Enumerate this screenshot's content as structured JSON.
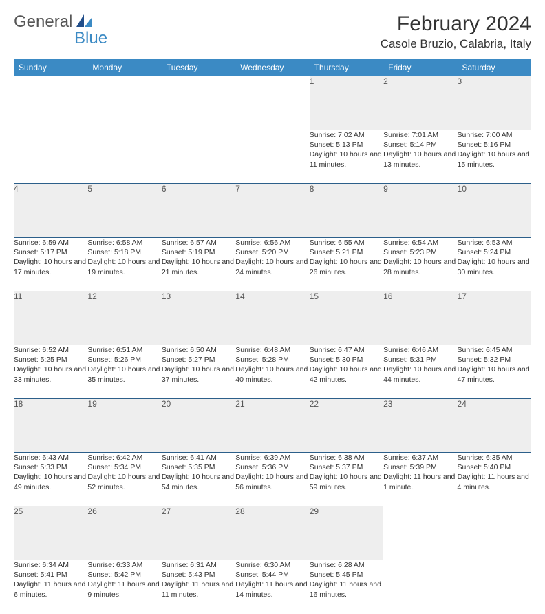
{
  "logo": {
    "part1": "General",
    "part2": "Blue"
  },
  "title": "February 2024",
  "location": "Casole Bruzio, Calabria, Italy",
  "colors": {
    "header_bg": "#3b8ac4",
    "header_text": "#ffffff",
    "daynum_bg": "#eeeeee",
    "border": "#2c5f8a"
  },
  "weekdays": [
    "Sunday",
    "Monday",
    "Tuesday",
    "Wednesday",
    "Thursday",
    "Friday",
    "Saturday"
  ],
  "weeks": [
    [
      null,
      null,
      null,
      null,
      {
        "n": "1",
        "sr": "Sunrise: 7:02 AM",
        "ss": "Sunset: 5:13 PM",
        "dl": "Daylight: 10 hours and 11 minutes."
      },
      {
        "n": "2",
        "sr": "Sunrise: 7:01 AM",
        "ss": "Sunset: 5:14 PM",
        "dl": "Daylight: 10 hours and 13 minutes."
      },
      {
        "n": "3",
        "sr": "Sunrise: 7:00 AM",
        "ss": "Sunset: 5:16 PM",
        "dl": "Daylight: 10 hours and 15 minutes."
      }
    ],
    [
      {
        "n": "4",
        "sr": "Sunrise: 6:59 AM",
        "ss": "Sunset: 5:17 PM",
        "dl": "Daylight: 10 hours and 17 minutes."
      },
      {
        "n": "5",
        "sr": "Sunrise: 6:58 AM",
        "ss": "Sunset: 5:18 PM",
        "dl": "Daylight: 10 hours and 19 minutes."
      },
      {
        "n": "6",
        "sr": "Sunrise: 6:57 AM",
        "ss": "Sunset: 5:19 PM",
        "dl": "Daylight: 10 hours and 21 minutes."
      },
      {
        "n": "7",
        "sr": "Sunrise: 6:56 AM",
        "ss": "Sunset: 5:20 PM",
        "dl": "Daylight: 10 hours and 24 minutes."
      },
      {
        "n": "8",
        "sr": "Sunrise: 6:55 AM",
        "ss": "Sunset: 5:21 PM",
        "dl": "Daylight: 10 hours and 26 minutes."
      },
      {
        "n": "9",
        "sr": "Sunrise: 6:54 AM",
        "ss": "Sunset: 5:23 PM",
        "dl": "Daylight: 10 hours and 28 minutes."
      },
      {
        "n": "10",
        "sr": "Sunrise: 6:53 AM",
        "ss": "Sunset: 5:24 PM",
        "dl": "Daylight: 10 hours and 30 minutes."
      }
    ],
    [
      {
        "n": "11",
        "sr": "Sunrise: 6:52 AM",
        "ss": "Sunset: 5:25 PM",
        "dl": "Daylight: 10 hours and 33 minutes."
      },
      {
        "n": "12",
        "sr": "Sunrise: 6:51 AM",
        "ss": "Sunset: 5:26 PM",
        "dl": "Daylight: 10 hours and 35 minutes."
      },
      {
        "n": "13",
        "sr": "Sunrise: 6:50 AM",
        "ss": "Sunset: 5:27 PM",
        "dl": "Daylight: 10 hours and 37 minutes."
      },
      {
        "n": "14",
        "sr": "Sunrise: 6:48 AM",
        "ss": "Sunset: 5:28 PM",
        "dl": "Daylight: 10 hours and 40 minutes."
      },
      {
        "n": "15",
        "sr": "Sunrise: 6:47 AM",
        "ss": "Sunset: 5:30 PM",
        "dl": "Daylight: 10 hours and 42 minutes."
      },
      {
        "n": "16",
        "sr": "Sunrise: 6:46 AM",
        "ss": "Sunset: 5:31 PM",
        "dl": "Daylight: 10 hours and 44 minutes."
      },
      {
        "n": "17",
        "sr": "Sunrise: 6:45 AM",
        "ss": "Sunset: 5:32 PM",
        "dl": "Daylight: 10 hours and 47 minutes."
      }
    ],
    [
      {
        "n": "18",
        "sr": "Sunrise: 6:43 AM",
        "ss": "Sunset: 5:33 PM",
        "dl": "Daylight: 10 hours and 49 minutes."
      },
      {
        "n": "19",
        "sr": "Sunrise: 6:42 AM",
        "ss": "Sunset: 5:34 PM",
        "dl": "Daylight: 10 hours and 52 minutes."
      },
      {
        "n": "20",
        "sr": "Sunrise: 6:41 AM",
        "ss": "Sunset: 5:35 PM",
        "dl": "Daylight: 10 hours and 54 minutes."
      },
      {
        "n": "21",
        "sr": "Sunrise: 6:39 AM",
        "ss": "Sunset: 5:36 PM",
        "dl": "Daylight: 10 hours and 56 minutes."
      },
      {
        "n": "22",
        "sr": "Sunrise: 6:38 AM",
        "ss": "Sunset: 5:37 PM",
        "dl": "Daylight: 10 hours and 59 minutes."
      },
      {
        "n": "23",
        "sr": "Sunrise: 6:37 AM",
        "ss": "Sunset: 5:39 PM",
        "dl": "Daylight: 11 hours and 1 minute."
      },
      {
        "n": "24",
        "sr": "Sunrise: 6:35 AM",
        "ss": "Sunset: 5:40 PM",
        "dl": "Daylight: 11 hours and 4 minutes."
      }
    ],
    [
      {
        "n": "25",
        "sr": "Sunrise: 6:34 AM",
        "ss": "Sunset: 5:41 PM",
        "dl": "Daylight: 11 hours and 6 minutes."
      },
      {
        "n": "26",
        "sr": "Sunrise: 6:33 AM",
        "ss": "Sunset: 5:42 PM",
        "dl": "Daylight: 11 hours and 9 minutes."
      },
      {
        "n": "27",
        "sr": "Sunrise: 6:31 AM",
        "ss": "Sunset: 5:43 PM",
        "dl": "Daylight: 11 hours and 11 minutes."
      },
      {
        "n": "28",
        "sr": "Sunrise: 6:30 AM",
        "ss": "Sunset: 5:44 PM",
        "dl": "Daylight: 11 hours and 14 minutes."
      },
      {
        "n": "29",
        "sr": "Sunrise: 6:28 AM",
        "ss": "Sunset: 5:45 PM",
        "dl": "Daylight: 11 hours and 16 minutes."
      },
      null,
      null
    ]
  ]
}
